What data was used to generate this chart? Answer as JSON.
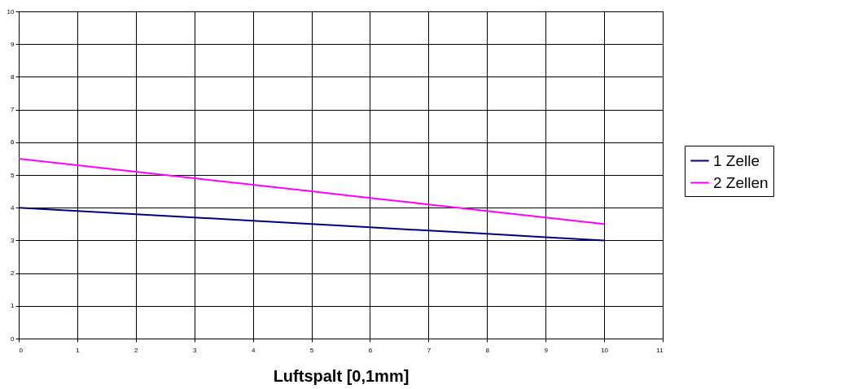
{
  "chart_data": {
    "type": "line",
    "xlabel": "Luftspalt [0,1mm]",
    "x": [
      0,
      1,
      2,
      3,
      4,
      5,
      6,
      7,
      8,
      9,
      10
    ],
    "series": [
      {
        "name": "1 Zelle",
        "color": "#000080",
        "values": [
          4,
          3.9,
          3.8,
          3.7,
          3.6,
          3.5,
          3.4,
          3.3,
          3.2,
          3.1,
          3.0
        ]
      },
      {
        "name": "2 Zellen",
        "color": "#ff00ff",
        "values": [
          5.5,
          5.3,
          5.1,
          4.9,
          4.7,
          4.5,
          4.3,
          4.1,
          3.9,
          3.7,
          3.5
        ]
      }
    ],
    "xlim": [
      0,
      11
    ],
    "xticks": [
      0,
      1,
      2,
      3,
      4,
      5,
      6,
      7,
      8,
      9,
      10,
      11
    ],
    "ylim": [
      0,
      10
    ],
    "yticks": [
      0,
      1,
      2,
      3,
      4,
      5,
      6,
      7,
      8,
      9,
      10
    ],
    "grid": true,
    "legend": "right",
    "marker": "none",
    "line_style": "solid"
  }
}
